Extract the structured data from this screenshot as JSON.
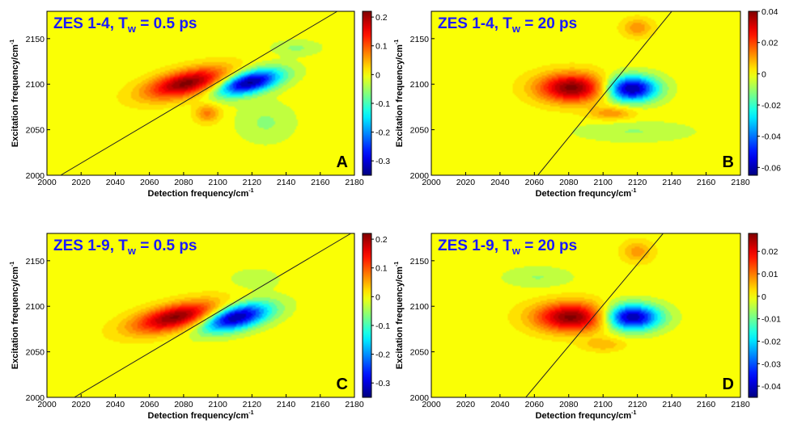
{
  "chart_data": [
    {
      "type": "heatmap",
      "panel_label": "A",
      "title": "ZES 1-4, T",
      "title_subscript": "w",
      "title_suffix": " = 0.5 ps",
      "xlabel": "Detection frequency/cm",
      "xlabel_sup": "-1",
      "ylabel": "Excitation frequency/cm",
      "ylabel_sup": "-1",
      "xlim": [
        2000,
        2180
      ],
      "ylim": [
        2000,
        2180
      ],
      "xticks": [
        "2000",
        "2020",
        "2040",
        "2060",
        "2080",
        "2100",
        "2120",
        "2140",
        "2160",
        "2180"
      ],
      "yticks": [
        "2000",
        "2050",
        "2100",
        "2150"
      ],
      "colorbar": {
        "min": -0.35,
        "max": 0.22,
        "ticks": [
          "0.2",
          "0.1",
          "0",
          "-0.1",
          "-0.2",
          "-0.3"
        ],
        "tick_values": [
          0.2,
          0.1,
          0,
          -0.1,
          -0.2,
          -0.3
        ]
      },
      "diagonal": {
        "x1": 2008,
        "y1": 2000,
        "x2": 2170,
        "y2": 2180
      },
      "features": [
        {
          "kind": "positive",
          "x": 2082,
          "y": 2101,
          "sx": 18,
          "sy": 9,
          "rot": 28,
          "amp": 1.0
        },
        {
          "kind": "negative",
          "x": 2118,
          "y": 2102,
          "sx": 15,
          "sy": 8,
          "rot": 30,
          "amp": 1.0
        },
        {
          "kind": "positive",
          "x": 2094,
          "y": 2068,
          "sx": 5,
          "sy": 7,
          "rot": 0,
          "amp": 0.35
        },
        {
          "kind": "negative",
          "x": 2128,
          "y": 2058,
          "sx": 12,
          "sy": 16,
          "rot": 0,
          "amp": 0.15
        },
        {
          "kind": "negative",
          "x": 2146,
          "y": 2140,
          "sx": 10,
          "sy": 6,
          "rot": 0,
          "amp": 0.15
        }
      ]
    },
    {
      "type": "heatmap",
      "panel_label": "B",
      "title": "ZES 1-4, T",
      "title_subscript": "w",
      "title_suffix": " = 20 ps",
      "xlabel": "Detection frequncy/cm",
      "xlabel_sup": "-1",
      "ylabel": "Excitation frequency/cm",
      "ylabel_sup": "-1",
      "xlim": [
        2000,
        2180
      ],
      "ylim": [
        2000,
        2180
      ],
      "xticks": [
        "2000",
        "2020",
        "2040",
        "2060",
        "2080",
        "2100",
        "2120",
        "2140",
        "2160",
        "2180"
      ],
      "yticks": [
        "2000",
        "2050",
        "2100",
        "2150"
      ],
      "colorbar": {
        "min": -0.065,
        "max": 0.04,
        "ticks": [
          "0.04",
          "0.02",
          "0",
          "-0.02",
          "-0.04",
          "-0.06"
        ],
        "tick_values": [
          0.04,
          0.02,
          0,
          -0.02,
          -0.04,
          -0.06
        ]
      },
      "diagonal": {
        "x1": 2062,
        "y1": 2000,
        "x2": 2140,
        "y2": 2180
      },
      "features": [
        {
          "kind": "positive",
          "x": 2082,
          "y": 2096,
          "sx": 14,
          "sy": 11,
          "rot": 0,
          "amp": 1.0
        },
        {
          "kind": "negative",
          "x": 2116,
          "y": 2095,
          "sx": 11,
          "sy": 10,
          "rot": 0,
          "amp": 1.0
        },
        {
          "kind": "positive",
          "x": 2105,
          "y": 2068,
          "sx": 9,
          "sy": 5,
          "rot": 0,
          "amp": 0.3
        },
        {
          "kind": "positive",
          "x": 2120,
          "y": 2162,
          "sx": 6,
          "sy": 7,
          "rot": 0,
          "amp": 0.3
        },
        {
          "kind": "negative",
          "x": 2118,
          "y": 2048,
          "sx": 24,
          "sy": 8,
          "rot": 0,
          "amp": 0.14
        }
      ]
    },
    {
      "type": "heatmap",
      "panel_label": "C",
      "title": "ZES 1-9, T",
      "title_subscript": "w",
      "title_suffix": " = 0.5 ps",
      "xlabel": "Detection frequency/cm",
      "xlabel_sup": "-1",
      "ylabel": "Excitation frequency/cm",
      "ylabel_sup": "-1",
      "xlim": [
        2000,
        2180
      ],
      "ylim": [
        2000,
        2180
      ],
      "xticks": [
        "2000",
        "2020",
        "2040",
        "2060",
        "2080",
        "2100",
        "2120",
        "2140",
        "2160",
        "2180"
      ],
      "yticks": [
        "2000",
        "2050",
        "2100",
        "2150"
      ],
      "colorbar": {
        "min": -0.35,
        "max": 0.22,
        "ticks": [
          "0.2",
          "0.1",
          "0",
          "-0.1",
          "-0.2",
          "-0.3"
        ],
        "tick_values": [
          0.2,
          0.1,
          0,
          -0.1,
          -0.2,
          -0.3
        ]
      },
      "diagonal": {
        "x1": 2016,
        "y1": 2000,
        "x2": 2178,
        "y2": 2180
      },
      "features": [
        {
          "kind": "positive",
          "x": 2076,
          "y": 2088,
          "sx": 19,
          "sy": 9,
          "rot": 26,
          "amp": 1.0
        },
        {
          "kind": "negative",
          "x": 2110,
          "y": 2088,
          "sx": 16,
          "sy": 9,
          "rot": 30,
          "amp": 1.0
        },
        {
          "kind": "negative",
          "x": 2122,
          "y": 2130,
          "sx": 10,
          "sy": 8,
          "rot": 0,
          "amp": 0.12
        }
      ]
    },
    {
      "type": "heatmap",
      "panel_label": "D",
      "title": "ZES 1-9, T",
      "title_subscript": "w",
      "title_suffix": " = 20 ps",
      "xlabel": "Detection frequncy/cm",
      "xlabel_sup": "-1",
      "ylabel": "Excitation frequency/cm",
      "ylabel_sup": "-1",
      "xlim": [
        2000,
        2180
      ],
      "ylim": [
        2000,
        2180
      ],
      "xticks": [
        "2000",
        "2020",
        "2040",
        "2060",
        "2080",
        "2100",
        "2120",
        "2140",
        "2160",
        "2180"
      ],
      "yticks": [
        "2000",
        "2050",
        "2100",
        "2150"
      ],
      "colorbar": {
        "min": -0.045,
        "max": 0.028,
        "ticks": [
          "0.02",
          "0.01",
          "0",
          "-0.01",
          "-0.02",
          "-0.03",
          "-0.04"
        ],
        "tick_values": [
          0.02,
          0.01,
          0,
          -0.01,
          -0.02,
          -0.03,
          -0.04
        ]
      },
      "diagonal": {
        "x1": 2055,
        "y1": 2000,
        "x2": 2135,
        "y2": 2180
      },
      "features": [
        {
          "kind": "positive",
          "x": 2082,
          "y": 2088,
          "sx": 15,
          "sy": 11,
          "rot": 0,
          "amp": 1.0
        },
        {
          "kind": "negative",
          "x": 2116,
          "y": 2088,
          "sx": 12,
          "sy": 10,
          "rot": 0,
          "amp": 1.0
        },
        {
          "kind": "positive",
          "x": 2120,
          "y": 2160,
          "sx": 6,
          "sy": 8,
          "rot": 0,
          "amp": 0.28
        },
        {
          "kind": "positive",
          "x": 2100,
          "y": 2058,
          "sx": 8,
          "sy": 5,
          "rot": 0,
          "amp": 0.22
        },
        {
          "kind": "negative",
          "x": 2062,
          "y": 2132,
          "sx": 14,
          "sy": 8,
          "rot": 0,
          "amp": 0.14
        }
      ]
    }
  ]
}
